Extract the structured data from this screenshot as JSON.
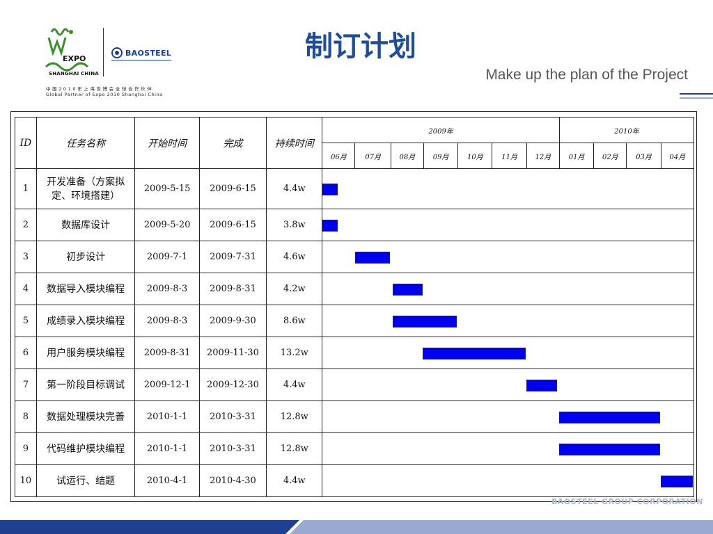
{
  "header": {
    "title": "制订计划",
    "subtitle": "Make up the plan of the Project"
  },
  "logo": {
    "expo_word": "EXPO",
    "expo_city": "SHANGHAI CHINA",
    "baosteel": "BAOSTEEL",
    "partner_cn": "中国2010年上海世博会全球合作伙伴",
    "partner_en": "Global Partner of Expo 2010 Shanghai China"
  },
  "table": {
    "columns": {
      "id": "ID",
      "task": "任务名称",
      "start": "开始时间",
      "end": "完成",
      "duration": "持续时间"
    },
    "years": [
      "2009年",
      "2010年"
    ],
    "months": [
      "06月",
      "07月",
      "08月",
      "09月",
      "10月",
      "11月",
      "12月",
      "01月",
      "02月",
      "03月",
      "04月"
    ],
    "rows": [
      {
        "id": "1",
        "task": "开发准备（方案拟定、环境搭建）",
        "start": "2009-5-15",
        "end": "2009-6-15",
        "duration": "4.4w"
      },
      {
        "id": "2",
        "task": "数据库设计",
        "start": "2009-5-20",
        "end": "2009-6-15",
        "duration": "3.8w"
      },
      {
        "id": "3",
        "task": "初步设计",
        "start": "2009-7-1",
        "end": "2009-7-31",
        "duration": "4.6w"
      },
      {
        "id": "4",
        "task": "数据导入模块编程",
        "start": "2009-8-3",
        "end": "2009-8-31",
        "duration": "4.2w"
      },
      {
        "id": "5",
        "task": "成绩录入模块编程",
        "start": "2009-8-3",
        "end": "2009-9-30",
        "duration": "8.6w"
      },
      {
        "id": "6",
        "task": "用户服务模块编程",
        "start": "2009-8-31",
        "end": "2009-11-30",
        "duration": "13.2w"
      },
      {
        "id": "7",
        "task": "第一阶段目标调试",
        "start": "2009-12-1",
        "end": "2009-12-30",
        "duration": "4.4w"
      },
      {
        "id": "8",
        "task": "数据处理模块完善",
        "start": "2010-1-1",
        "end": "2010-3-31",
        "duration": "12.8w"
      },
      {
        "id": "9",
        "task": "代码维护模块编程",
        "start": "2010-1-1",
        "end": "2010-3-31",
        "duration": "12.8w"
      },
      {
        "id": "10",
        "task": "试运行、结题",
        "start": "2010-4-1",
        "end": "2010-4-30",
        "duration": "4.4w"
      }
    ]
  },
  "chart_data": {
    "type": "gantt",
    "timeline_start": "2009-06",
    "timeline_end": "2010-04",
    "bars": [
      {
        "task_id": "1",
        "start": "2009-5-15",
        "end": "2009-6-15"
      },
      {
        "task_id": "2",
        "start": "2009-5-20",
        "end": "2009-6-15"
      },
      {
        "task_id": "3",
        "start": "2009-7-1",
        "end": "2009-7-31"
      },
      {
        "task_id": "4",
        "start": "2009-8-3",
        "end": "2009-8-31"
      },
      {
        "task_id": "5",
        "start": "2009-8-3",
        "end": "2009-9-30"
      },
      {
        "task_id": "6",
        "start": "2009-8-31",
        "end": "2009-11-30"
      },
      {
        "task_id": "7",
        "start": "2009-12-1",
        "end": "2009-12-30"
      },
      {
        "task_id": "8",
        "start": "2010-1-1",
        "end": "2010-3-31"
      },
      {
        "task_id": "9",
        "start": "2010-1-1",
        "end": "2010-3-31"
      },
      {
        "task_id": "10",
        "start": "2010-4-1",
        "end": "2010-4-30"
      }
    ]
  },
  "colors": {
    "title": "#1f4e96",
    "bar": "#0000ee",
    "footer_dark": "#1f3f8f",
    "footer_light": "#9aa9cf"
  },
  "watermark": "BAOSTEEL GROUP CORPORATION"
}
